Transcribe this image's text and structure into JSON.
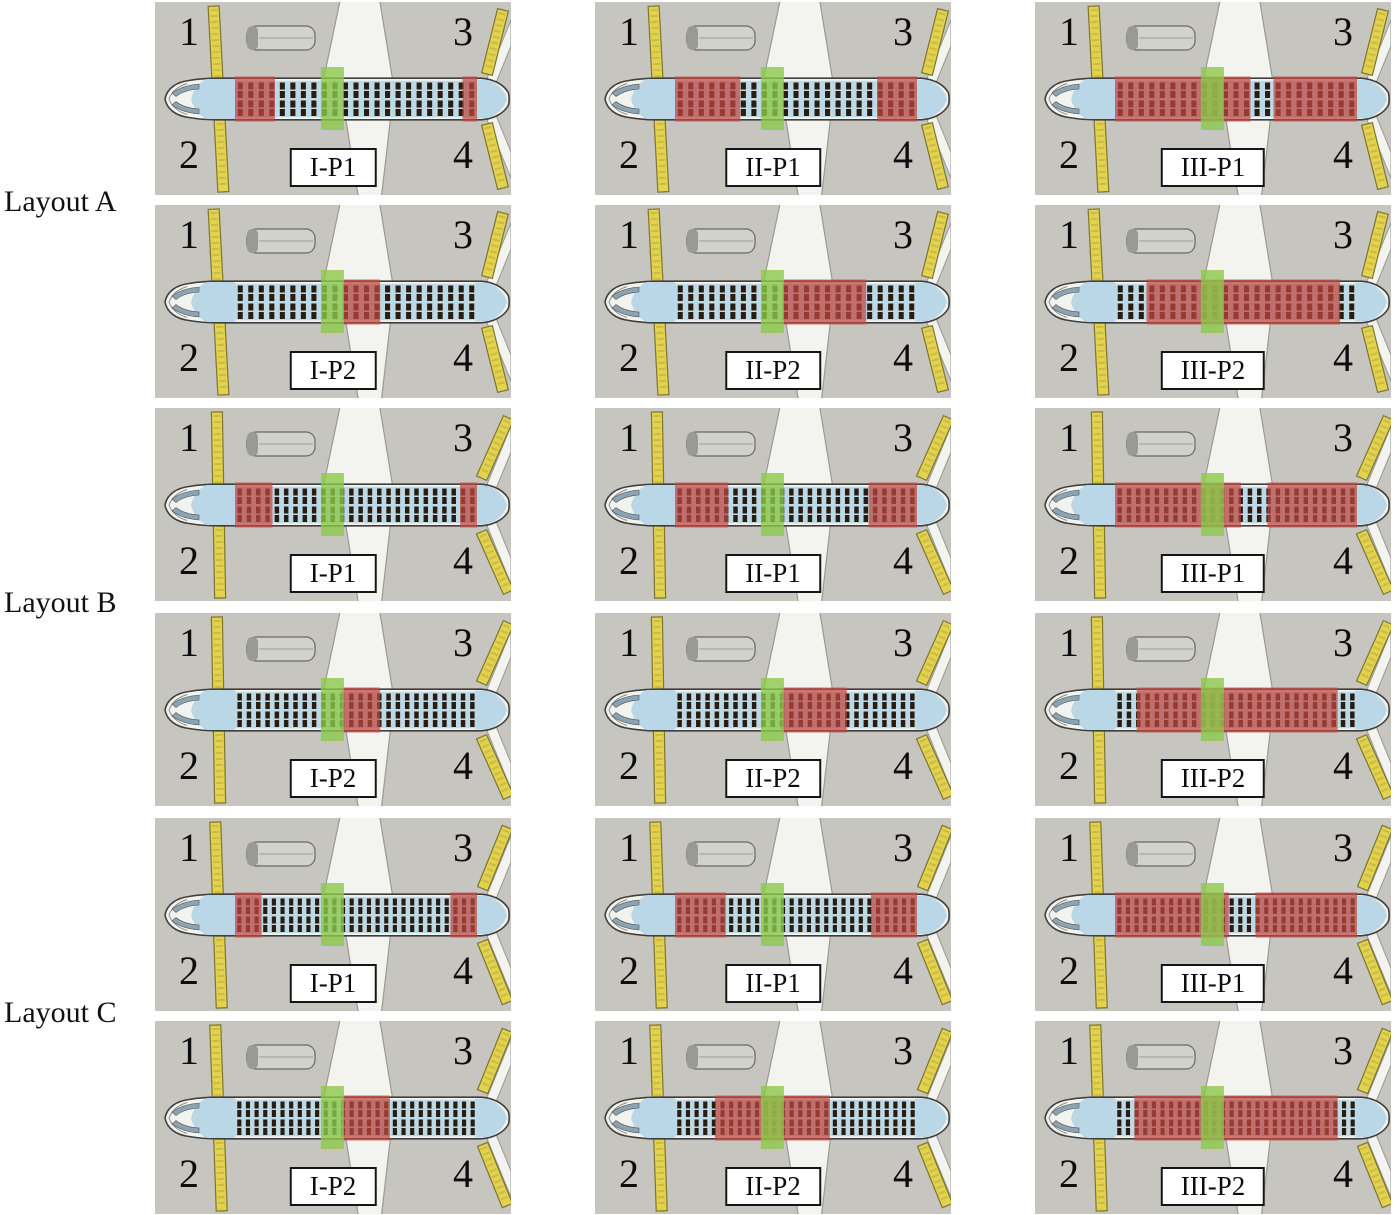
{
  "figure_name": "aircraft-cabin-evacuation-seat-layouts",
  "row_labels": [
    "Layout A",
    "Layout B",
    "Layout C"
  ],
  "exit_numbers": [
    "1",
    "2",
    "3",
    "4"
  ],
  "green_exit_zone": [
    0.355,
    0.45
  ],
  "panels": [
    {
      "group": "A",
      "label": "I-P1",
      "red_zones": [
        [
          0,
          0.165
        ],
        [
          0.94,
          1
        ]
      ]
    },
    {
      "group": "A",
      "label": "II-P1",
      "red_zones": [
        [
          0,
          0.27
        ],
        [
          0.835,
          1
        ]
      ]
    },
    {
      "group": "A",
      "label": "III-P1",
      "red_zones": [
        [
          0,
          0.56
        ],
        [
          0.655,
          1
        ]
      ]
    },
    {
      "group": "A",
      "label": "I-P2",
      "red_zones": [
        [
          0.445,
          0.6
        ]
      ]
    },
    {
      "group": "A",
      "label": "II-P2",
      "red_zones": [
        [
          0.445,
          0.79
        ]
      ]
    },
    {
      "group": "A",
      "label": "III-P2",
      "red_zones": [
        [
          0.13,
          0.93
        ]
      ]
    },
    {
      "group": "B",
      "label": "I-P1",
      "red_zones": [
        [
          0,
          0.155
        ],
        [
          0.93,
          1
        ]
      ]
    },
    {
      "group": "B",
      "label": "II-P1",
      "red_zones": [
        [
          0,
          0.22
        ],
        [
          0.8,
          1
        ]
      ]
    },
    {
      "group": "B",
      "label": "III-P1",
      "red_zones": [
        [
          0,
          0.52
        ],
        [
          0.63,
          1
        ]
      ]
    },
    {
      "group": "B",
      "label": "I-P2",
      "red_zones": [
        [
          0.44,
          0.6
        ]
      ]
    },
    {
      "group": "B",
      "label": "II-P2",
      "red_zones": [
        [
          0.44,
          0.71
        ]
      ]
    },
    {
      "group": "B",
      "label": "III-P2",
      "red_zones": [
        [
          0.09,
          0.92
        ]
      ]
    },
    {
      "group": "C",
      "label": "I-P1",
      "red_zones": [
        [
          0,
          0.11
        ],
        [
          0.89,
          1
        ]
      ]
    },
    {
      "group": "C",
      "label": "II-P1",
      "red_zones": [
        [
          0,
          0.21
        ],
        [
          0.81,
          1
        ]
      ]
    },
    {
      "group": "C",
      "label": "III-P1",
      "red_zones": [
        [
          0,
          0.47
        ],
        [
          0.58,
          1
        ]
      ]
    },
    {
      "group": "C",
      "label": "I-P2",
      "red_zones": [
        [
          0.44,
          0.64
        ]
      ]
    },
    {
      "group": "C",
      "label": "II-P2",
      "red_zones": [
        [
          0.165,
          0.64
        ]
      ]
    },
    {
      "group": "C",
      "label": "III-P2",
      "red_zones": [
        [
          0.08,
          0.92
        ]
      ]
    }
  ],
  "variants": {
    "A": {
      "seat_rows": 23,
      "right_slide_angle": 14,
      "left_slide_angle": -3
    },
    "B": {
      "seat_rows": 26,
      "right_slide_angle": 24,
      "left_slide_angle": -1
    },
    "C": {
      "seat_rows": 28,
      "right_slide_angle": 22,
      "left_slide_angle": -2
    }
  },
  "colors": {
    "panel_bg": "#c6c5c0",
    "zone_red": "#c0463e",
    "exit_green": "#8cc84a",
    "slide_yellow": "#e2d24e",
    "cabin_blue": "#bcd9e8",
    "nose_blue": "#b9d7e6",
    "seat_dark": "#2b1c10",
    "hull": "#f2f2ee",
    "hull_line": "#3f3f3b",
    "wing": "#f3f3ef",
    "wing_line": "#9a9a94"
  }
}
